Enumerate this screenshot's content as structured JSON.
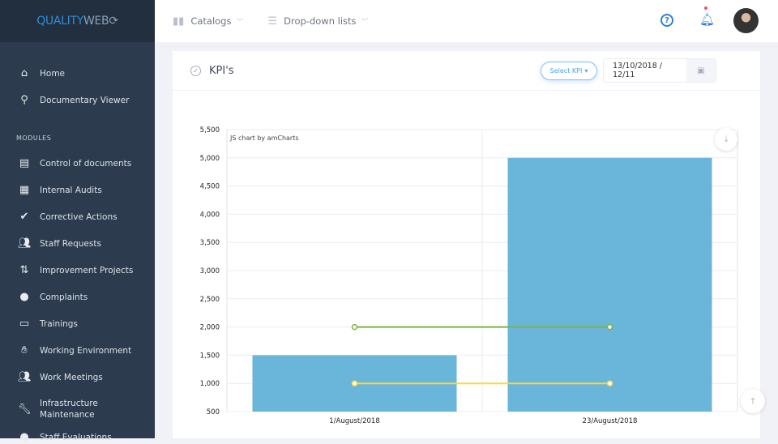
{
  "brand": {
    "part1": "QUALITY",
    "part2": "WEB"
  },
  "topbar": {
    "catalogs": "Catalogs",
    "dropdown_lists": "Drop-down lists"
  },
  "sidebar": {
    "items": [
      {
        "label": "Home",
        "icon": "home"
      },
      {
        "label": "Documentary Viewer",
        "icon": "search"
      }
    ],
    "section": "MODULES",
    "modules": [
      {
        "label": "Control of documents",
        "icon": "file"
      },
      {
        "label": "Internal Audits",
        "icon": "calendar-check"
      },
      {
        "label": "Corrective Actions",
        "icon": "check-circle"
      },
      {
        "label": "Staff Requests",
        "icon": "users"
      },
      {
        "label": "Improvement Projects",
        "icon": "sort"
      },
      {
        "label": "Complaints",
        "icon": "comment"
      },
      {
        "label": "Trainings",
        "icon": "chalkboard"
      },
      {
        "label": "Working Environment",
        "icon": "handshake"
      },
      {
        "label": "Work Meetings",
        "icon": "users"
      },
      {
        "label": "Infrastructure Maintenance",
        "icon": "wrench"
      },
      {
        "label": "Staff Evaluations",
        "icon": "user-check"
      }
    ]
  },
  "card": {
    "title": "KPI's",
    "select_kpi": "Select KPI",
    "date_range": "13/10/2018 / 12/11"
  },
  "chart_data": {
    "type": "bar",
    "credit": "JS chart by amCharts",
    "categories": [
      "1/August/2018",
      "23/August/2018"
    ],
    "series": [
      {
        "type": "bar",
        "values": [
          1500,
          5000
        ],
        "color": "#6ab5da"
      },
      {
        "type": "line",
        "values": [
          2000,
          2000
        ],
        "color": "#7cb342"
      },
      {
        "type": "line",
        "values": [
          1000,
          1000
        ],
        "color": "#fdd835"
      }
    ],
    "ylim": [
      500,
      5500
    ],
    "yticks": [
      "500",
      "1,000",
      "1,500",
      "2,000",
      "2,500",
      "3,000",
      "3,500",
      "4,000",
      "4,500",
      "5,000",
      "5,500"
    ],
    "grid": true
  }
}
